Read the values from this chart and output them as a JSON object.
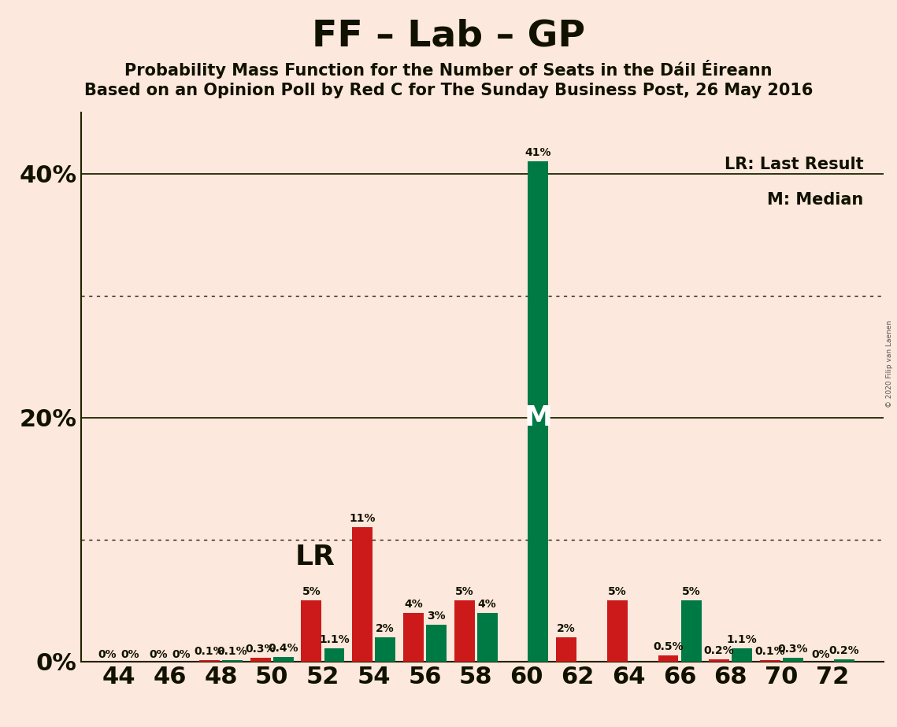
{
  "title": "FF – Lab – GP",
  "subtitle1": "Probability Mass Function for the Number of Seats in the Dáil Éireann",
  "subtitle2": "Based on an Opinion Poll by Red C for The Sunday Business Post, 26 May 2016",
  "copyright": "© 2020 Filip van Laenen",
  "background_color": "#fce8dc",
  "bar_color_red": "#cc1a1a",
  "bar_color_green": "#007a45",
  "seats": [
    44,
    46,
    48,
    50,
    52,
    54,
    56,
    58,
    60,
    62,
    64,
    66,
    68,
    70,
    72
  ],
  "red_values": [
    0.0,
    0.0,
    0.1,
    0.3,
    5.0,
    11.0,
    4.0,
    5.0,
    0.0,
    2.0,
    5.0,
    0.5,
    0.2,
    0.1,
    0.0
  ],
  "green_values": [
    0.0,
    0.0,
    0.1,
    0.4,
    1.1,
    2.0,
    3.0,
    4.0,
    41.0,
    0.0,
    0.0,
    5.0,
    1.1,
    0.3,
    0.2
  ],
  "red_labels": [
    "0%",
    "0%",
    "0.1%",
    "0.3%",
    "5%",
    "11%",
    "4%",
    "5%",
    "",
    "2%",
    "5%",
    "0.5%",
    "0.2%",
    "0.1%",
    "0%"
  ],
  "green_labels": [
    "0%",
    "0%",
    "0.1%",
    "0.4%",
    "1.1%",
    "2%",
    "3%",
    "4%",
    "41%",
    "",
    "",
    "5%",
    "1.1%",
    "0.3%",
    "0.2%"
  ],
  "ytick_positions": [
    0,
    20,
    40
  ],
  "ytick_labels": [
    "0%",
    "20%",
    "40%"
  ],
  "dotted_lines": [
    10.0,
    30.0
  ],
  "solid_lines": [
    20.0,
    40.0
  ],
  "xlim": [
    42.5,
    74.0
  ],
  "ylim": [
    0,
    45
  ],
  "xtick_seats": [
    44,
    46,
    48,
    50,
    52,
    54,
    56,
    58,
    60,
    62,
    64,
    66,
    68,
    70,
    72
  ],
  "median_seat": 60,
  "lr_seat": 52,
  "lr_label": "LR",
  "median_label": "M",
  "legend_lr": "LR: Last Result",
  "legend_m": "M: Median",
  "bar_width": 0.8,
  "title_fontsize": 34,
  "subtitle_fontsize": 15,
  "bar_label_fontsize": 10,
  "ytick_fontsize": 22,
  "xtick_fontsize": 22
}
